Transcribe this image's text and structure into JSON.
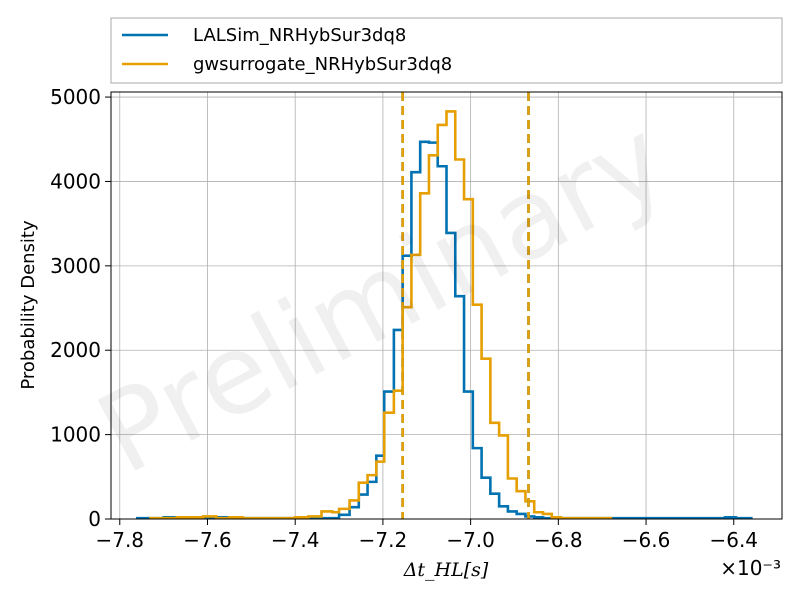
{
  "chart_data": {
    "type": "histogram",
    "xlabel": "Δt_HL[s]",
    "ylabel": "Probability Density",
    "x_offset_label": "×10⁻³",
    "watermark": "Preliminary",
    "xlim": [
      -7.82,
      -6.29
    ],
    "ylim": [
      0,
      5060
    ],
    "x_ticks": [
      -7.8,
      -7.6,
      -7.4,
      -7.2,
      -7.0,
      -6.8,
      -6.6,
      -6.4
    ],
    "x_tick_labels": [
      "−7.8",
      "−7.6",
      "−7.4",
      "−7.2",
      "−7.0",
      "−6.8",
      "−6.6",
      "−6.4"
    ],
    "y_ticks": [
      0,
      1000,
      2000,
      3000,
      4000,
      5000
    ],
    "y_tick_labels": [
      "0",
      "1000",
      "2000",
      "3000",
      "4000",
      "5000"
    ],
    "grid": true,
    "legend_position": "top-outside",
    "series": [
      {
        "name": "LALSim_NRHybSur3dq8",
        "color": "#0072B2",
        "bin_edges": [
          -7.76,
          -7.73,
          -7.7,
          -7.67,
          -7.64,
          -7.61,
          -7.58,
          -7.55,
          -7.52,
          -7.49,
          -7.46,
          -7.43,
          -7.4,
          -7.37,
          -7.34,
          -7.3,
          -7.276,
          -7.255,
          -7.235,
          -7.215,
          -7.197,
          -7.175,
          -7.155,
          -7.135,
          -7.115,
          -7.095,
          -7.075,
          -7.055,
          -7.035,
          -7.015,
          -6.995,
          -6.975,
          -6.955,
          -6.935,
          -6.915,
          -6.895,
          -6.875,
          -6.855,
          -6.835,
          -6.815,
          -6.795,
          -6.775,
          -6.755,
          -6.73,
          -6.7,
          -6.66,
          -6.62,
          -6.58,
          -6.54,
          -6.5,
          -6.46,
          -6.42,
          -6.395,
          -6.36
        ],
        "densities": [
          10,
          10,
          20,
          20,
          10,
          10,
          20,
          10,
          10,
          10,
          10,
          10,
          20,
          10,
          10,
          50,
          140,
          290,
          440,
          750,
          1510,
          2240,
          3120,
          4110,
          4470,
          4460,
          4180,
          3390,
          2640,
          1510,
          840,
          490,
          300,
          150,
          90,
          60,
          30,
          20,
          10,
          10,
          10,
          10,
          10,
          10,
          10,
          10,
          10,
          10,
          10,
          10,
          10,
          20,
          10
        ]
      },
      {
        "name": "gwsurrogate_NRHybSur3dq8",
        "color": "#E69F00",
        "bin_edges": [
          -7.73,
          -7.7,
          -7.67,
          -7.64,
          -7.61,
          -7.58,
          -7.55,
          -7.52,
          -7.49,
          -7.46,
          -7.43,
          -7.4,
          -7.37,
          -7.34,
          -7.315,
          -7.3,
          -7.276,
          -7.255,
          -7.235,
          -7.215,
          -7.197,
          -7.175,
          -7.155,
          -7.135,
          -7.115,
          -7.095,
          -7.075,
          -7.055,
          -7.035,
          -7.015,
          -6.995,
          -6.975,
          -6.955,
          -6.935,
          -6.915,
          -6.895,
          -6.875,
          -6.855,
          -6.835,
          -6.815,
          -6.795,
          -6.775,
          -6.755,
          -6.73,
          -6.7,
          -6.68
        ],
        "densities": [
          10,
          10,
          20,
          20,
          30,
          10,
          20,
          10,
          10,
          10,
          10,
          20,
          30,
          90,
          80,
          120,
          220,
          430,
          520,
          680,
          1260,
          1520,
          2510,
          3130,
          3860,
          4310,
          4670,
          4830,
          4260,
          3790,
          2540,
          1900,
          1140,
          990,
          480,
          330,
          210,
          80,
          60,
          20,
          10,
          10,
          10,
          10,
          10
        ]
      }
    ],
    "vlines": [
      {
        "x": -7.155,
        "style": "dashed"
      },
      {
        "x": -6.868,
        "style": "dashed"
      }
    ]
  }
}
